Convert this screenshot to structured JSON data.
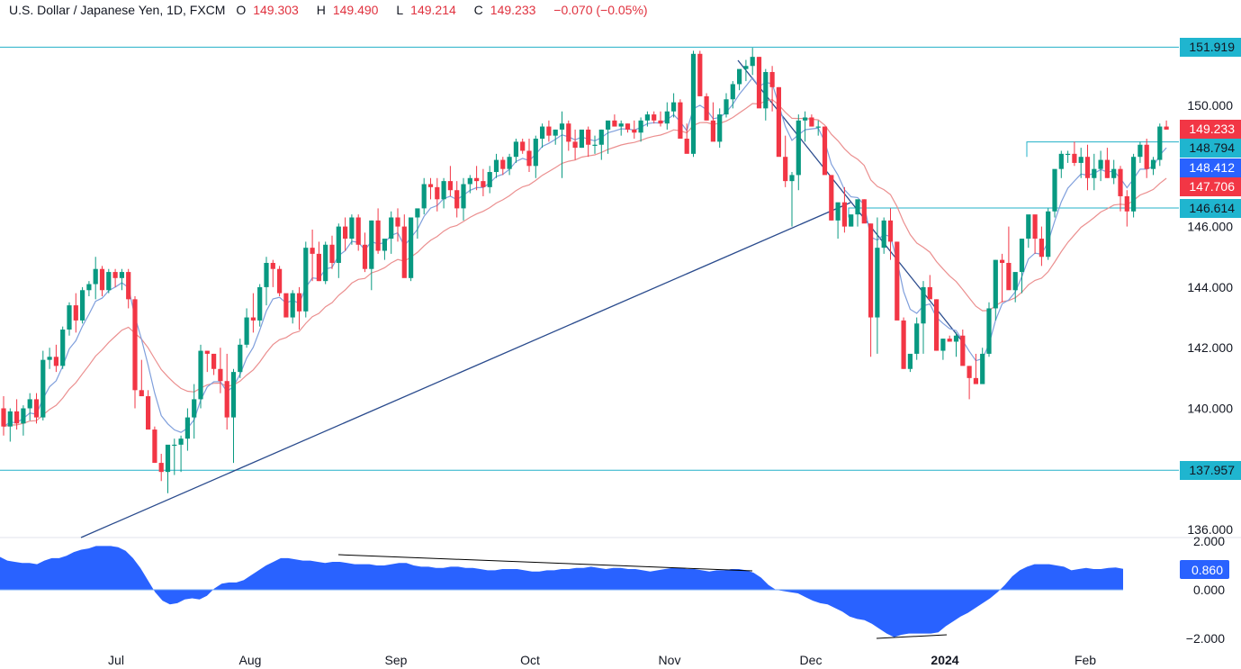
{
  "header": {
    "symbol": "U.S. Dollar / Japanese Yen, 1D, FXCM",
    "open_label": "O",
    "open": "149.303",
    "high_label": "H",
    "high": "149.490",
    "low_label": "L",
    "low": "149.214",
    "close_label": "C",
    "close": "149.233",
    "change": "−0.070 (−0.05%)"
  },
  "colors": {
    "up": "#089981",
    "down": "#f23645",
    "ma_fast": "#7f9fdc",
    "ma_slow": "#eb8f8f",
    "hline": "#22b0c8",
    "trendline": "#2a4b8d",
    "oscillator": "#2962ff",
    "tag_teal": "#1fb5cf",
    "tag_red": "#f23645",
    "tag_blue": "#2962ff"
  },
  "price_axis": {
    "ticks": [
      "150.000",
      "146.000",
      "144.000",
      "142.000",
      "140.000",
      "136.000"
    ],
    "tags": [
      {
        "label": "151.919",
        "kind": "hline"
      },
      {
        "label": "149.233",
        "kind": "last_price"
      },
      {
        "label": "148.794",
        "kind": "hline"
      },
      {
        "label": "148.412",
        "kind": "ma_fast"
      },
      {
        "label": "147.706",
        "kind": "ma_slow"
      },
      {
        "label": "146.614",
        "kind": "hline"
      },
      {
        "label": "137.957",
        "kind": "hline"
      }
    ]
  },
  "indicator_axis": {
    "ticks": [
      "2.000",
      "0.000",
      "−2.000"
    ],
    "tag": "0.860"
  },
  "time_axis": {
    "labels": [
      "Jul",
      "Aug",
      "Sep",
      "Oct",
      "Nov",
      "Dec",
      "2024",
      "Feb"
    ]
  },
  "chart_data": {
    "type": "candlestick",
    "title": "U.S. Dollar / Japanese Yen, 1D, FXCM",
    "xlabel": "",
    "ylabel": "",
    "ylim": [
      135.7,
      153.5
    ],
    "x_tick_labels": [
      "Jul",
      "Aug",
      "Sep",
      "Oct",
      "Nov",
      "Dec",
      "2024",
      "Feb"
    ],
    "horizontal_levels": [
      151.919,
      148.794,
      146.614,
      137.957
    ],
    "last": {
      "open": 149.303,
      "high": 149.49,
      "low": 149.214,
      "close": 149.233,
      "change": -0.07,
      "change_pct": -0.05
    },
    "moving_averages": [
      {
        "name": "MA fast",
        "last": 148.412
      },
      {
        "name": "MA slow",
        "last": 147.706
      }
    ],
    "ohlc": [
      [
        140.0,
        140.4,
        139.1,
        139.4
      ],
      [
        139.4,
        140.0,
        138.9,
        139.9
      ],
      [
        139.9,
        140.3,
        139.3,
        139.5
      ],
      [
        139.5,
        140.1,
        139.1,
        140.0
      ],
      [
        140.0,
        140.5,
        139.6,
        140.3
      ],
      [
        140.3,
        140.5,
        139.5,
        139.7
      ],
      [
        139.7,
        141.9,
        139.6,
        141.6
      ],
      [
        141.6,
        142.0,
        141.3,
        141.7
      ],
      [
        141.7,
        142.1,
        141.2,
        141.4
      ],
      [
        141.4,
        142.7,
        141.3,
        142.6
      ],
      [
        142.6,
        143.5,
        142.4,
        143.4
      ],
      [
        143.4,
        143.8,
        142.5,
        142.9
      ],
      [
        142.9,
        144.0,
        142.8,
        143.9
      ],
      [
        143.9,
        144.2,
        143.7,
        144.1
      ],
      [
        144.1,
        145.0,
        143.6,
        144.6
      ],
      [
        144.6,
        144.7,
        143.7,
        143.9
      ],
      [
        143.9,
        144.6,
        143.8,
        144.5
      ],
      [
        144.5,
        144.6,
        144.0,
        144.3
      ],
      [
        144.3,
        144.6,
        143.9,
        144.5
      ],
      [
        144.5,
        144.6,
        143.3,
        143.6
      ],
      [
        143.6,
        143.7,
        140.0,
        140.6
      ],
      [
        140.6,
        141.6,
        140.4,
        140.4
      ],
      [
        140.4,
        140.6,
        139.5,
        139.3
      ],
      [
        139.3,
        139.4,
        138.2,
        138.2
      ],
      [
        138.2,
        138.5,
        137.6,
        137.9
      ],
      [
        137.9,
        138.7,
        137.2,
        138.8
      ],
      [
        138.8,
        139.0,
        137.8,
        138.8
      ],
      [
        138.8,
        139.1,
        137.9,
        139.0
      ],
      [
        139.0,
        140.0,
        138.6,
        139.7
      ],
      [
        139.7,
        140.8,
        139.0,
        140.3
      ],
      [
        140.3,
        142.1,
        140.0,
        141.9
      ],
      [
        141.9,
        141.9,
        141.2,
        141.8
      ],
      [
        141.8,
        141.8,
        141.1,
        141.3
      ],
      [
        141.3,
        142.0,
        140.5,
        140.9
      ],
      [
        140.9,
        141.8,
        139.3,
        139.7
      ],
      [
        139.7,
        141.3,
        138.2,
        141.2
      ],
      [
        141.2,
        142.3,
        141.0,
        142.1
      ],
      [
        142.1,
        143.3,
        142.0,
        143.0
      ],
      [
        143.0,
        143.8,
        142.5,
        142.9
      ],
      [
        142.9,
        144.1,
        142.7,
        144.0
      ],
      [
        144.0,
        145.0,
        143.4,
        144.8
      ],
      [
        144.8,
        144.9,
        144.0,
        144.6
      ],
      [
        144.6,
        144.7,
        143.7,
        143.8
      ],
      [
        143.8,
        143.7,
        143.1,
        143.0
      ],
      [
        143.0,
        143.9,
        142.8,
        143.8
      ],
      [
        143.8,
        144.0,
        142.6,
        143.2
      ],
      [
        143.2,
        145.5,
        143.0,
        145.3
      ],
      [
        145.3,
        145.9,
        144.2,
        145.1
      ],
      [
        145.1,
        145.5,
        144.2,
        144.2
      ],
      [
        144.2,
        145.5,
        144.1,
        145.4
      ],
      [
        145.4,
        145.7,
        144.6,
        144.8
      ],
      [
        144.8,
        146.1,
        144.3,
        146.0
      ],
      [
        146.0,
        146.3,
        145.2,
        145.6
      ],
      [
        145.6,
        146.4,
        145.4,
        146.3
      ],
      [
        146.3,
        146.4,
        145.2,
        145.4
      ],
      [
        145.4,
        145.8,
        144.5,
        144.6
      ],
      [
        144.6,
        146.2,
        143.9,
        146.2
      ],
      [
        146.2,
        146.6,
        145.1,
        145.2
      ],
      [
        145.2,
        145.5,
        144.9,
        145.6
      ],
      [
        145.6,
        146.5,
        145.1,
        146.3
      ],
      [
        146.3,
        146.6,
        145.5,
        146.0
      ],
      [
        146.0,
        146.4,
        145.0,
        144.3
      ],
      [
        144.3,
        146.2,
        144.2,
        146.3
      ],
      [
        146.3,
        146.5,
        145.6,
        146.6
      ],
      [
        146.6,
        147.6,
        146.4,
        147.4
      ],
      [
        147.4,
        147.6,
        146.9,
        147.3
      ],
      [
        147.3,
        147.6,
        146.5,
        146.9
      ],
      [
        146.9,
        147.6,
        146.6,
        147.5
      ],
      [
        147.5,
        148.0,
        147.0,
        147.2
      ],
      [
        147.2,
        147.5,
        146.3,
        146.6
      ],
      [
        146.6,
        147.6,
        146.2,
        147.4
      ],
      [
        147.4,
        147.7,
        147.1,
        147.6
      ],
      [
        147.6,
        148.0,
        147.2,
        147.5
      ],
      [
        147.5,
        147.9,
        147.0,
        147.3
      ],
      [
        147.3,
        148.0,
        147.1,
        147.8
      ],
      [
        147.8,
        148.4,
        147.6,
        148.2
      ],
      [
        148.2,
        148.3,
        147.7,
        147.9
      ],
      [
        147.9,
        148.4,
        147.7,
        148.3
      ],
      [
        148.3,
        148.9,
        148.1,
        148.8
      ],
      [
        148.8,
        148.9,
        148.4,
        148.5
      ],
      [
        148.5,
        148.9,
        147.8,
        148.0
      ],
      [
        148.0,
        149.0,
        147.6,
        148.9
      ],
      [
        148.9,
        149.4,
        148.6,
        149.3
      ],
      [
        149.3,
        149.5,
        148.8,
        149.0
      ],
      [
        149.0,
        149.2,
        148.7,
        149.2
      ],
      [
        149.2,
        149.8,
        147.6,
        149.4
      ],
      [
        149.4,
        149.5,
        148.5,
        148.8
      ],
      [
        148.8,
        149.2,
        148.2,
        148.6
      ],
      [
        148.6,
        149.1,
        148.6,
        149.2
      ],
      [
        149.2,
        149.3,
        148.3,
        148.7
      ],
      [
        148.7,
        149.0,
        148.4,
        148.7
      ],
      [
        148.7,
        149.2,
        148.2,
        149.2
      ],
      [
        149.2,
        149.4,
        148.4,
        149.5
      ],
      [
        149.5,
        149.7,
        149.3,
        149.3
      ],
      [
        149.3,
        149.5,
        149.0,
        149.4
      ],
      [
        149.4,
        149.4,
        149.1,
        149.2
      ],
      [
        149.2,
        149.5,
        148.9,
        149.1
      ],
      [
        149.1,
        149.6,
        148.8,
        149.5
      ],
      [
        149.5,
        149.8,
        149.3,
        149.7
      ],
      [
        149.7,
        149.8,
        149.4,
        149.5
      ],
      [
        149.5,
        149.8,
        149.3,
        149.4
      ],
      [
        149.4,
        150.1,
        149.2,
        149.8
      ],
      [
        149.8,
        150.4,
        149.6,
        150.1
      ],
      [
        150.1,
        150.2,
        149.0,
        148.9
      ],
      [
        148.9,
        149.4,
        148.5,
        148.4
      ],
      [
        148.4,
        151.8,
        148.3,
        151.7
      ],
      [
        151.7,
        151.8,
        150.3,
        150.3
      ],
      [
        150.3,
        150.4,
        149.5,
        149.5
      ],
      [
        149.5,
        150.1,
        149.1,
        148.8
      ],
      [
        148.8,
        149.9,
        148.6,
        149.7
      ],
      [
        149.7,
        150.4,
        149.6,
        150.2
      ],
      [
        150.2,
        150.8,
        149.9,
        150.7
      ],
      [
        150.7,
        151.1,
        150.5,
        151.2
      ],
      [
        151.2,
        151.5,
        150.8,
        151.3
      ],
      [
        151.3,
        151.9,
        151.0,
        151.6
      ],
      [
        151.6,
        151.6,
        150.4,
        149.9
      ],
      [
        149.9,
        151.2,
        149.5,
        151.1
      ],
      [
        151.1,
        151.3,
        149.8,
        150.6
      ],
      [
        150.6,
        150.6,
        148.8,
        148.3
      ],
      [
        148.3,
        149.0,
        147.3,
        147.5
      ],
      [
        147.5,
        147.8,
        146.0,
        147.7
      ],
      [
        147.7,
        149.7,
        147.2,
        149.5
      ],
      [
        149.5,
        149.8,
        148.8,
        149.6
      ],
      [
        149.6,
        149.7,
        149.3,
        149.3
      ],
      [
        149.3,
        149.5,
        149.0,
        149.3
      ],
      [
        149.3,
        149.3,
        147.9,
        147.7
      ],
      [
        147.7,
        147.7,
        146.2,
        146.2
      ],
      [
        146.2,
        146.4,
        145.6,
        146.8
      ],
      [
        146.8,
        147.3,
        145.8,
        146.0
      ],
      [
        146.0,
        146.3,
        146.0,
        146.4
      ],
      [
        146.4,
        146.8,
        146.0,
        146.9
      ],
      [
        146.9,
        146.9,
        146.3,
        146.1
      ],
      [
        146.1,
        146.1,
        141.7,
        143.0
      ],
      [
        143.0,
        146.3,
        141.8,
        145.3
      ],
      [
        145.3,
        146.3,
        145.1,
        146.2
      ],
      [
        146.2,
        146.6,
        144.9,
        145.5
      ],
      [
        145.5,
        145.5,
        143.7,
        142.9
      ],
      [
        142.9,
        143.0,
        141.3,
        141.3
      ],
      [
        141.3,
        141.4,
        141.2,
        141.8
      ],
      [
        141.8,
        143.0,
        141.6,
        142.8
      ],
      [
        142.8,
        144.2,
        141.8,
        144.0
      ],
      [
        144.0,
        144.4,
        143.9,
        143.6
      ],
      [
        143.6,
        143.6,
        141.9,
        141.9
      ],
      [
        141.9,
        142.3,
        141.6,
        142.3
      ],
      [
        142.3,
        142.4,
        142.2,
        142.2
      ],
      [
        142.2,
        142.5,
        141.7,
        142.4
      ],
      [
        142.4,
        142.6,
        141.6,
        141.4
      ],
      [
        141.4,
        141.4,
        140.3,
        141.0
      ],
      [
        141.0,
        141.8,
        140.9,
        140.8
      ],
      [
        140.8,
        142.0,
        140.9,
        141.8
      ],
      [
        141.8,
        143.5,
        141.7,
        143.3
      ],
      [
        143.3,
        144.9,
        142.9,
        144.9
      ],
      [
        144.9,
        145.1,
        143.5,
        144.8
      ],
      [
        144.8,
        146.0,
        144.6,
        143.9
      ],
      [
        143.9,
        144.4,
        143.5,
        144.5
      ],
      [
        144.5,
        145.6,
        143.8,
        145.6
      ],
      [
        145.6,
        146.1,
        145.3,
        146.4
      ],
      [
        146.4,
        146.3,
        145.1,
        145.6
      ],
      [
        145.6,
        146.0,
        144.7,
        145.0
      ],
      [
        145.0,
        146.6,
        144.9,
        146.5
      ],
      [
        146.5,
        147.3,
        146.3,
        147.9
      ],
      [
        147.9,
        148.5,
        147.6,
        148.4
      ],
      [
        148.4,
        148.5,
        148.1,
        148.4
      ],
      [
        148.4,
        148.8,
        148.0,
        148.1
      ],
      [
        148.1,
        148.6,
        147.6,
        148.3
      ],
      [
        148.3,
        148.7,
        147.2,
        147.6
      ],
      [
        147.6,
        148.4,
        147.2,
        147.9
      ],
      [
        147.9,
        148.5,
        147.5,
        148.2
      ],
      [
        148.2,
        148.6,
        147.6,
        147.6
      ],
      [
        147.6,
        148.2,
        147.4,
        147.9
      ],
      [
        147.9,
        148.0,
        146.5,
        147.0
      ],
      [
        147.0,
        147.2,
        146.0,
        146.5
      ],
      [
        146.5,
        148.4,
        146.3,
        148.3
      ],
      [
        148.3,
        148.8,
        148.1,
        148.7
      ],
      [
        148.7,
        148.9,
        147.6,
        147.9
      ],
      [
        147.9,
        148.3,
        147.7,
        148.2
      ],
      [
        148.2,
        149.4,
        148.0,
        149.3
      ],
      [
        149.3,
        149.5,
        149.2,
        149.2
      ]
    ],
    "oscillator": {
      "name": "Oscillator",
      "last": 0.86,
      "ylim": [
        -2.1,
        2.1
      ],
      "values": [
        1.35,
        1.2,
        1.15,
        1.1,
        1.1,
        1.05,
        1.2,
        1.3,
        1.3,
        1.4,
        1.55,
        1.65,
        1.7,
        1.8,
        1.8,
        1.8,
        1.75,
        1.6,
        1.3,
        0.9,
        0.4,
        -0.1,
        -0.45,
        -0.6,
        -0.55,
        -0.4,
        -0.35,
        -0.4,
        -0.25,
        0.05,
        0.25,
        0.3,
        0.3,
        0.4,
        0.6,
        0.8,
        1.0,
        1.15,
        1.3,
        1.3,
        1.25,
        1.2,
        1.2,
        1.15,
        1.1,
        1.15,
        1.15,
        1.1,
        1.05,
        1.05,
        1.05,
        1.0,
        1.0,
        1.05,
        1.1,
        1.1,
        1.0,
        0.95,
        0.95,
        0.9,
        0.9,
        0.95,
        0.95,
        0.9,
        0.9,
        0.85,
        0.8,
        0.8,
        0.85,
        0.85,
        0.85,
        0.8,
        0.75,
        0.75,
        0.8,
        0.8,
        0.85,
        0.85,
        0.9,
        0.9,
        0.95,
        0.9,
        0.85,
        0.9,
        0.9,
        0.85,
        0.85,
        0.8,
        0.75,
        0.8,
        0.85,
        0.9,
        0.9,
        0.85,
        0.85,
        0.8,
        0.75,
        0.8,
        0.8,
        0.85,
        0.85,
        0.8,
        0.7,
        0.5,
        0.2,
        0.0,
        -0.05,
        -0.1,
        -0.15,
        -0.3,
        -0.45,
        -0.55,
        -0.6,
        -0.75,
        -0.9,
        -1.1,
        -1.2,
        -1.25,
        -1.4,
        -1.6,
        -1.8,
        -1.95,
        -1.85,
        -1.8,
        -1.8,
        -1.8,
        -1.8,
        -1.75,
        -1.5,
        -1.3,
        -1.1,
        -0.95,
        -0.75,
        -0.55,
        -0.35,
        -0.1,
        0.2,
        0.55,
        0.8,
        0.95,
        1.05,
        1.05,
        1.05,
        1.0,
        0.95,
        0.8,
        0.85,
        0.9,
        0.85,
        0.85,
        0.9,
        0.92,
        0.86
      ]
    }
  }
}
